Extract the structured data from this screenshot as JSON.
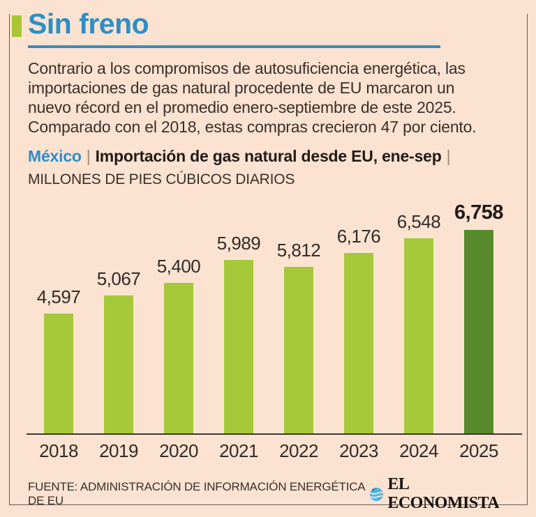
{
  "header": {
    "title": "Sin freno"
  },
  "intro": {
    "text": "Contrario a los compromisos de autosuficiencia energética, las\nimportaciones de gas natural procedente de EU marcaron un\nnuevo récord en el promedio enero-septiembre de este 2025.\nComparado con el 2018, estas compras crecieron 47 por ciento."
  },
  "subtitle": {
    "country": "México",
    "separator": "|",
    "title": "Importación de gas natural desde EU, ene-sep",
    "units": "MILLONES DE PIES CÚBICOS DIARIOS"
  },
  "chart_data": {
    "type": "bar",
    "title": "México | Importación de gas natural desde EU, ene-sep",
    "ylabel": "MILLONES DE PIES CÚBICOS DIARIOS",
    "xlabel": "",
    "categories": [
      "2018",
      "2019",
      "2020",
      "2021",
      "2022",
      "2023",
      "2024",
      "2025"
    ],
    "values": [
      4597,
      5067,
      5400,
      5989,
      5812,
      6176,
      6548,
      6758
    ],
    "value_labels": [
      "4,597",
      "5,067",
      "5,400",
      "5,989",
      "5,812",
      "6,176",
      "6,548",
      "6,758"
    ],
    "highlight_index": 7,
    "bar_color": "#a5c93a",
    "highlight_color": "#578a2d",
    "ylim": [
      1500,
      7000
    ],
    "grid": false,
    "legend": "none",
    "value_label_position": "above-bars"
  },
  "footer": {
    "source": "FUENTE: ADMINISTRACIÓN DE INFORMACIÓN ENERGÉTICA DE EU",
    "brand": "EL ECONOMISTA"
  },
  "colors": {
    "background": "#fce3d1",
    "accent_blue": "#2e8ec7",
    "marker_green": "#a9c735",
    "bar_green": "#a5c93a",
    "bar_dark_green": "#578a2d",
    "text": "#3a2e2a",
    "baseline": "#3f3430",
    "frame": "#6a594f",
    "logo_blue": "#49b5e7"
  }
}
